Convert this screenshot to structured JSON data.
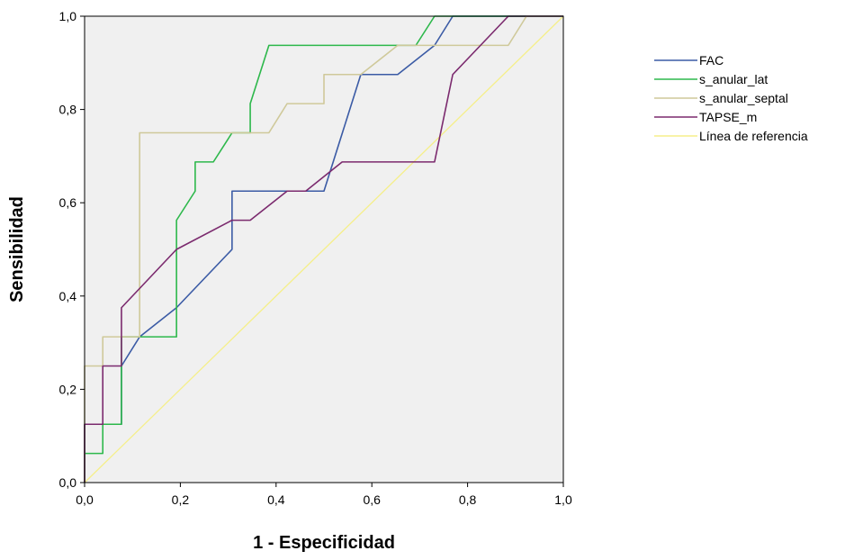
{
  "chart_data": {
    "type": "line",
    "xlabel": "1 - Especificidad",
    "ylabel": "Sensibilidad",
    "xlim": [
      0.0,
      1.0
    ],
    "ylim": [
      0.0,
      1.0
    ],
    "x_ticks": [
      "0,0",
      "0,2",
      "0,4",
      "0,6",
      "0,8",
      "1,0"
    ],
    "y_ticks": [
      "0,0",
      "0,2",
      "0,4",
      "0,6",
      "0,8",
      "1,0"
    ],
    "grid": false,
    "legend_position": "right",
    "plot_background": "#f0f0f0",
    "series": [
      {
        "name": "FAC",
        "color": "#3b5ba5",
        "points": [
          [
            0.0,
            0.0
          ],
          [
            0.0,
            0.125
          ],
          [
            0.077,
            0.125
          ],
          [
            0.077,
            0.25
          ],
          [
            0.115,
            0.3125
          ],
          [
            0.192,
            0.375
          ],
          [
            0.308,
            0.5
          ],
          [
            0.308,
            0.625
          ],
          [
            0.423,
            0.625
          ],
          [
            0.5,
            0.625
          ],
          [
            0.577,
            0.875
          ],
          [
            0.654,
            0.875
          ],
          [
            0.731,
            0.9375
          ],
          [
            0.769,
            1.0
          ],
          [
            1.0,
            1.0
          ]
        ]
      },
      {
        "name": "s_anular_lat",
        "color": "#2db84b",
        "points": [
          [
            0.0,
            0.0
          ],
          [
            0.0,
            0.0625
          ],
          [
            0.038,
            0.0625
          ],
          [
            0.038,
            0.125
          ],
          [
            0.077,
            0.125
          ],
          [
            0.077,
            0.3125
          ],
          [
            0.192,
            0.3125
          ],
          [
            0.192,
            0.5625
          ],
          [
            0.231,
            0.625
          ],
          [
            0.231,
            0.6875
          ],
          [
            0.269,
            0.6875
          ],
          [
            0.308,
            0.75
          ],
          [
            0.346,
            0.75
          ],
          [
            0.346,
            0.8125
          ],
          [
            0.385,
            0.9375
          ],
          [
            0.692,
            0.9375
          ],
          [
            0.731,
            1.0
          ],
          [
            1.0,
            1.0
          ]
        ]
      },
      {
        "name": "s_anular_septal",
        "color": "#cfc99a",
        "points": [
          [
            0.0,
            0.0
          ],
          [
            0.0,
            0.25
          ],
          [
            0.038,
            0.25
          ],
          [
            0.038,
            0.3125
          ],
          [
            0.115,
            0.3125
          ],
          [
            0.115,
            0.75
          ],
          [
            0.385,
            0.75
          ],
          [
            0.423,
            0.8125
          ],
          [
            0.5,
            0.8125
          ],
          [
            0.5,
            0.875
          ],
          [
            0.577,
            0.875
          ],
          [
            0.654,
            0.9375
          ],
          [
            0.885,
            0.9375
          ],
          [
            0.923,
            1.0
          ],
          [
            1.0,
            1.0
          ]
        ]
      },
      {
        "name": "TAPSE_m",
        "color": "#7b2a6e",
        "points": [
          [
            0.0,
            0.0
          ],
          [
            0.0,
            0.125
          ],
          [
            0.038,
            0.125
          ],
          [
            0.038,
            0.25
          ],
          [
            0.077,
            0.25
          ],
          [
            0.077,
            0.375
          ],
          [
            0.192,
            0.5
          ],
          [
            0.308,
            0.5625
          ],
          [
            0.346,
            0.5625
          ],
          [
            0.423,
            0.625
          ],
          [
            0.462,
            0.625
          ],
          [
            0.538,
            0.6875
          ],
          [
            0.731,
            0.6875
          ],
          [
            0.769,
            0.875
          ],
          [
            0.885,
            1.0
          ],
          [
            1.0,
            1.0
          ]
        ]
      },
      {
        "name": "Línea de referencia",
        "color": "#f5ef8a",
        "points": [
          [
            0.0,
            0.0
          ],
          [
            1.0,
            1.0
          ]
        ]
      }
    ]
  }
}
